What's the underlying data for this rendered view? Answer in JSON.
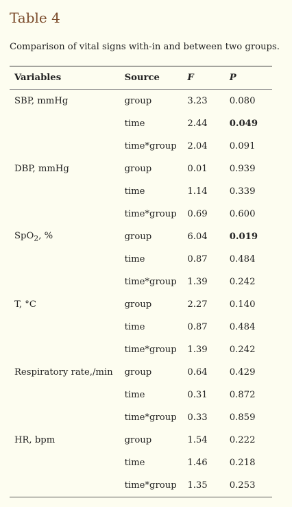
{
  "title": "Table 4",
  "caption": "Comparison of vital signs with-in and between two groups.",
  "headers": {
    "variables": "Variables",
    "source": "Source",
    "f": "F",
    "p": "P"
  },
  "rows": [
    {
      "variable": "SBP, mmHg",
      "source": "group",
      "f": "3.23",
      "p": "0.080",
      "p_bold": false
    },
    {
      "variable": "",
      "source": "time",
      "f": "2.44",
      "p": "0.049",
      "p_bold": true
    },
    {
      "variable": "",
      "source": "time*group",
      "f": "2.04",
      "p": "0.091",
      "p_bold": false
    },
    {
      "variable": "DBP, mmHg",
      "source": "group",
      "f": "0.01",
      "p": "0.939",
      "p_bold": false
    },
    {
      "variable": "",
      "source": "time",
      "f": "1.14",
      "p": "0.339",
      "p_bold": false
    },
    {
      "variable": "",
      "source": "time*group",
      "f": "0.69",
      "p": "0.600",
      "p_bold": false
    },
    {
      "variable": "SpO",
      "variable_sub": "2",
      "variable_suffix": ", %",
      "source": "group",
      "f": "6.04",
      "p": "0.019",
      "p_bold": true
    },
    {
      "variable": "",
      "source": "time",
      "f": "0.87",
      "p": "0.484",
      "p_bold": false
    },
    {
      "variable": "",
      "source": "time*group",
      "f": "1.39",
      "p": "0.242",
      "p_bold": false
    },
    {
      "variable": "T, °C",
      "source": "group",
      "f": "2.27",
      "p": "0.140",
      "p_bold": false
    },
    {
      "variable": "",
      "source": "time",
      "f": "0.87",
      "p": "0.484",
      "p_bold": false
    },
    {
      "variable": "",
      "source": "time*group",
      "f": "1.39",
      "p": "0.242",
      "p_bold": false
    },
    {
      "variable": "Respiratory rate,/min",
      "source": "group",
      "f": "0.64",
      "p": "0.429",
      "p_bold": false
    },
    {
      "variable": "",
      "source": "time",
      "f": "0.31",
      "p": "0.872",
      "p_bold": false
    },
    {
      "variable": "",
      "source": "time*group",
      "f": "0.33",
      "p": "0.859",
      "p_bold": false
    },
    {
      "variable": "HR, bpm",
      "source": "group",
      "f": "1.54",
      "p": "0.222",
      "p_bold": false
    },
    {
      "variable": "",
      "source": "time",
      "f": "1.46",
      "p": "0.218",
      "p_bold": false
    },
    {
      "variable": "",
      "source": "time*group",
      "f": "1.35",
      "p": "0.253",
      "p_bold": false
    }
  ]
}
